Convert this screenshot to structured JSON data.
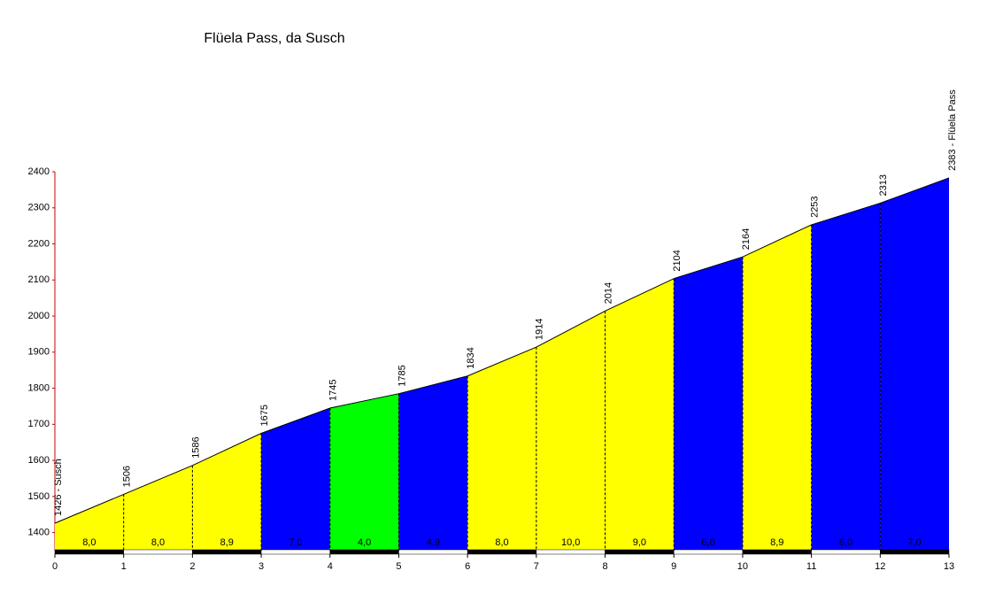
{
  "chart_data": {
    "type": "area",
    "title": "Flüela Pass, da Susch",
    "x": [
      0,
      1,
      2,
      3,
      4,
      5,
      6,
      7,
      8,
      9,
      10,
      11,
      12,
      13
    ],
    "values": [
      1426,
      1506,
      1586,
      1675,
      1745,
      1785,
      1834,
      1914,
      2014,
      2104,
      2164,
      2253,
      2313,
      2383
    ],
    "value_labels": [
      "1426 - Susch",
      "1506",
      "1586",
      "1675",
      "1745",
      "1785",
      "1834",
      "1914",
      "2014",
      "2104",
      "2164",
      "2253",
      "2313",
      "2383 - Flüela Pass"
    ],
    "segments": {
      "values": [
        8.0,
        8.0,
        8.9,
        7.0,
        4.0,
        4.9,
        8.0,
        10.0,
        9.0,
        6.0,
        8.9,
        6.0,
        7.0
      ],
      "value_labels": [
        "8,0",
        "8,0",
        "8,9",
        "7,0",
        "4,0",
        "4,9",
        "8,0",
        "10,0",
        "9,0",
        "6,0",
        "8,9",
        "6,0",
        "7,0"
      ],
      "colors": [
        "#ffff00",
        "#ffff00",
        "#ffff00",
        "#0000ff",
        "#00ff00",
        "#0000ff",
        "#ffff00",
        "#ffff00",
        "#ffff00",
        "#0000ff",
        "#ffff00",
        "#0000ff",
        "#0000ff"
      ]
    },
    "xlim": [
      0,
      13
    ],
    "xticks": [
      0,
      1,
      2,
      3,
      4,
      5,
      6,
      7,
      8,
      9,
      10,
      11,
      12,
      13
    ],
    "ylim": [
      1350,
      2400
    ],
    "yticks": [
      1400,
      1500,
      1600,
      1700,
      1800,
      1900,
      2000,
      2100,
      2200,
      2300,
      2400
    ]
  }
}
